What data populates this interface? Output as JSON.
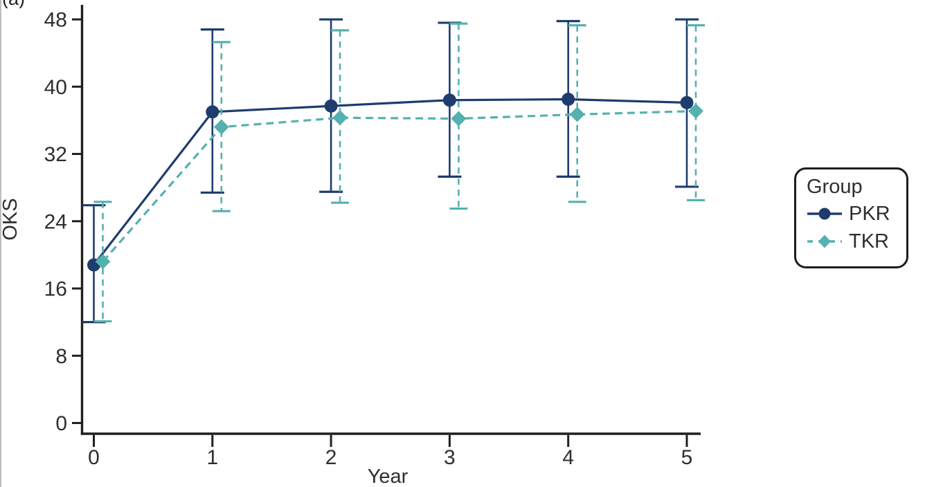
{
  "panel_label": "(a)",
  "colors": {
    "pkr": "#1e3c6e",
    "tkr": "#54b1af",
    "axis": "#1f1f1f",
    "text": "#2e2e2e",
    "background": "#ffffff",
    "edge_border": "#bdbdbd"
  },
  "legend": {
    "title": "Group",
    "items": [
      {
        "label": "PKR"
      },
      {
        "label": "TKR"
      }
    ]
  },
  "chart_data": {
    "type": "line",
    "title": "",
    "xlabel": "Year",
    "ylabel": "OKS",
    "x": [
      0,
      1,
      2,
      3,
      4,
      5
    ],
    "xticks": [
      0,
      1,
      2,
      3,
      4,
      5
    ],
    "yticks": [
      0,
      8,
      16,
      24,
      32,
      40,
      48
    ],
    "xlim": [
      -0.1,
      5.2
    ],
    "ylim": [
      0,
      49.7
    ],
    "grid": false,
    "legend_position": "right-outside",
    "legend_title": "Group",
    "series": [
      {
        "name": "PKR",
        "line_style": "solid",
        "marker": "circle",
        "color": "#1e3c6e",
        "values": [
          18.8,
          37.0,
          37.7,
          38.4,
          38.5,
          38.1
        ],
        "ci_lower": [
          12.0,
          27.4,
          27.5,
          29.3,
          29.3,
          28.1
        ],
        "ci_upper": [
          25.9,
          46.8,
          48.0,
          47.6,
          47.8,
          48.0
        ]
      },
      {
        "name": "TKR",
        "line_style": "dashed",
        "marker": "diamond",
        "color": "#54b1af",
        "values": [
          19.2,
          35.2,
          36.3,
          36.2,
          36.7,
          37.1
        ],
        "ci_lower": [
          12.1,
          25.2,
          26.2,
          25.5,
          26.3,
          26.5
        ],
        "ci_upper": [
          26.3,
          45.3,
          46.7,
          47.5,
          47.3,
          47.3
        ]
      }
    ]
  }
}
